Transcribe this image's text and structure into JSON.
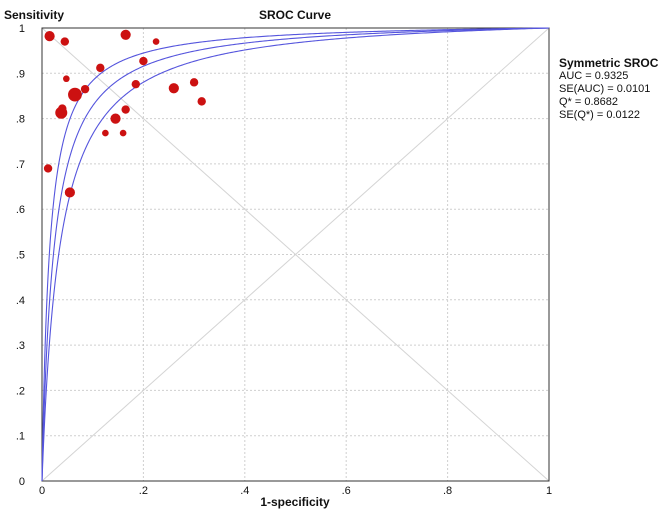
{
  "chart_data": {
    "type": "scatter",
    "title": "SROC Curve",
    "xlabel": "1-specificity",
    "ylabel": "Sensitivity",
    "xlim": [
      0,
      1
    ],
    "ylim": [
      0,
      1
    ],
    "grid": true,
    "x_ticks": [
      "0",
      ".2",
      ".4",
      ".6",
      ".8",
      "1"
    ],
    "y_ticks": [
      "0",
      ".1",
      ".2",
      ".3",
      ".4",
      ".5",
      ".6",
      ".7",
      ".8",
      ".9",
      "1"
    ],
    "points": [
      {
        "x": 0.015,
        "y": 0.982,
        "size": 3
      },
      {
        "x": 0.045,
        "y": 0.97,
        "size": 2
      },
      {
        "x": 0.165,
        "y": 0.985,
        "size": 3
      },
      {
        "x": 0.225,
        "y": 0.97,
        "size": 1
      },
      {
        "x": 0.115,
        "y": 0.912,
        "size": 2
      },
      {
        "x": 0.048,
        "y": 0.888,
        "size": 1
      },
      {
        "x": 0.085,
        "y": 0.865,
        "size": 2
      },
      {
        "x": 0.065,
        "y": 0.853,
        "size": 5
      },
      {
        "x": 0.04,
        "y": 0.822,
        "size": 2
      },
      {
        "x": 0.038,
        "y": 0.813,
        "size": 4
      },
      {
        "x": 0.185,
        "y": 0.876,
        "size": 2
      },
      {
        "x": 0.2,
        "y": 0.927,
        "size": 2
      },
      {
        "x": 0.145,
        "y": 0.8,
        "size": 3
      },
      {
        "x": 0.165,
        "y": 0.82,
        "size": 2
      },
      {
        "x": 0.125,
        "y": 0.768,
        "size": 1
      },
      {
        "x": 0.16,
        "y": 0.768,
        "size": 1
      },
      {
        "x": 0.26,
        "y": 0.867,
        "size": 3
      },
      {
        "x": 0.3,
        "y": 0.88,
        "size": 2
      },
      {
        "x": 0.315,
        "y": 0.838,
        "size": 2
      },
      {
        "x": 0.012,
        "y": 0.69,
        "size": 2
      },
      {
        "x": 0.055,
        "y": 0.637,
        "size": 3
      }
    ],
    "curves": [
      {
        "name": "SROC",
        "sensitivity_model": "symmetric",
        "Q": 0.8682
      },
      {
        "name": "SROC upper bound",
        "sensitivity_model": "symmetric",
        "Q": 0.8921
      },
      {
        "name": "SROC lower bound",
        "sensitivity_model": "symmetric",
        "Q": 0.8443
      }
    ],
    "point_color": "#cc1111",
    "curve_color": "#5555dd",
    "grid_color": "#cfcfcf"
  },
  "legend": {
    "title": "Symmetric SROC",
    "lines": [
      "AUC = 0.9325",
      "SE(AUC) = 0.0101",
      "Q* = 0.8682",
      "SE(Q*) = 0.0122"
    ]
  }
}
